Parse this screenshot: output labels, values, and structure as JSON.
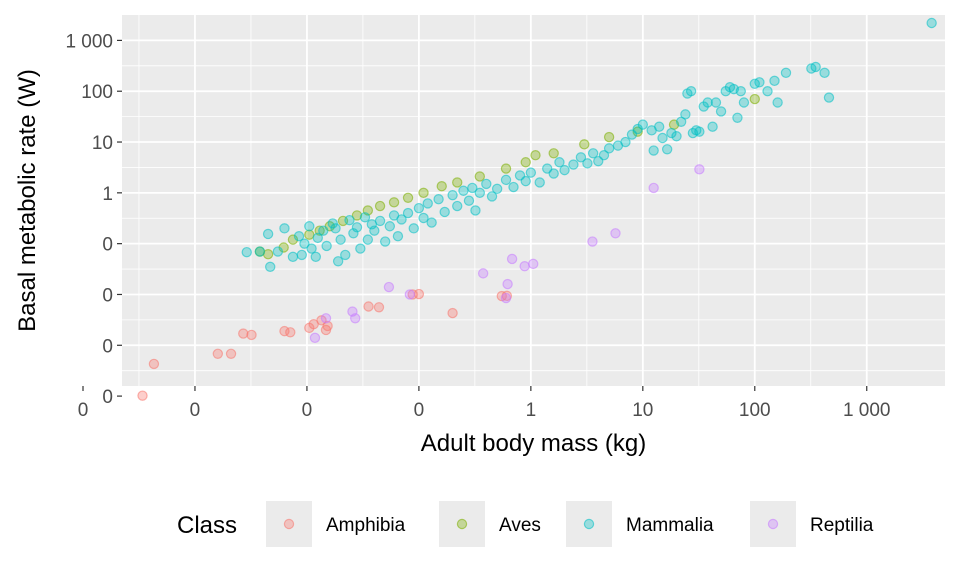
{
  "chart_data": {
    "type": "scatter",
    "xlabel": "Adult body mass (kg)",
    "ylabel": "Basal metabolic rate (W)",
    "x_scale": "log10",
    "y_scale": "log10",
    "xlim": [
      0.000223,
      5000
    ],
    "ylim": [
      0.000158,
      3162
    ],
    "x_ticks": [
      {
        "value": 0.0001,
        "label": "0"
      },
      {
        "value": 0.001,
        "label": "0"
      },
      {
        "value": 0.01,
        "label": "0"
      },
      {
        "value": 0.1,
        "label": "0"
      },
      {
        "value": 1,
        "label": "1"
      },
      {
        "value": 10,
        "label": "10"
      },
      {
        "value": 100,
        "label": "100"
      },
      {
        "value": 1000,
        "label": "1 000"
      }
    ],
    "y_ticks": [
      {
        "value": 0.0001,
        "label": "0"
      },
      {
        "value": 0.001,
        "label": "0"
      },
      {
        "value": 0.01,
        "label": "0"
      },
      {
        "value": 0.1,
        "label": "0"
      },
      {
        "value": 1,
        "label": "1"
      },
      {
        "value": 10,
        "label": "10"
      },
      {
        "value": 100,
        "label": "100"
      },
      {
        "value": 1000,
        "label": "1 000"
      }
    ],
    "grid": true,
    "legend_position": "bottom",
    "legend_title": "Class",
    "marker_alpha": 0.35,
    "series": [
      {
        "name": "Amphibia",
        "color": "#F8766D",
        "points": [
          [
            0.00034,
            0.000102
          ],
          [
            0.00043,
            0.00043
          ],
          [
            0.0016,
            0.00068
          ],
          [
            0.0021,
            0.00068
          ],
          [
            0.0027,
            0.0017
          ],
          [
            0.0032,
            0.0016
          ],
          [
            0.0063,
            0.0019
          ],
          [
            0.0071,
            0.0018
          ],
          [
            0.0105,
            0.0022
          ],
          [
            0.0115,
            0.0026
          ],
          [
            0.0135,
            0.0031
          ],
          [
            0.0148,
            0.002
          ],
          [
            0.0153,
            0.0024
          ],
          [
            0.0355,
            0.0058
          ],
          [
            0.044,
            0.0056
          ],
          [
            0.088,
            0.01
          ],
          [
            0.1,
            0.0102
          ],
          [
            0.2,
            0.0043
          ],
          [
            0.55,
            0.0093
          ],
          [
            0.61,
            0.0094
          ]
        ]
      },
      {
        "name": "Aves",
        "color": "#7CAE00",
        "points": [
          [
            0.0038,
            0.07
          ],
          [
            0.0045,
            0.062
          ],
          [
            0.0062,
            0.084
          ],
          [
            0.0075,
            0.12
          ],
          [
            0.0105,
            0.15
          ],
          [
            0.013,
            0.18
          ],
          [
            0.016,
            0.22
          ],
          [
            0.021,
            0.28
          ],
          [
            0.028,
            0.36
          ],
          [
            0.035,
            0.45
          ],
          [
            0.045,
            0.55
          ],
          [
            0.06,
            0.65
          ],
          [
            0.08,
            0.8
          ],
          [
            0.11,
            1.0
          ],
          [
            0.16,
            1.35
          ],
          [
            0.22,
            1.6
          ],
          [
            0.35,
            2.1
          ],
          [
            0.6,
            3.0
          ],
          [
            0.9,
            4.0
          ],
          [
            1.1,
            5.5
          ],
          [
            1.6,
            6.0
          ],
          [
            3.0,
            9.0
          ],
          [
            5.0,
            12.5
          ],
          [
            9.0,
            16.0
          ],
          [
            19.0,
            22.0
          ],
          [
            100.0,
            70.0
          ]
        ]
      },
      {
        "name": "Mammalia",
        "color": "#00BFC4",
        "points": [
          [
            0.0029,
            0.068
          ],
          [
            0.0038,
            0.07
          ],
          [
            0.0045,
            0.155
          ],
          [
            0.0047,
            0.035
          ],
          [
            0.0055,
            0.07
          ],
          [
            0.0063,
            0.2
          ],
          [
            0.0075,
            0.055
          ],
          [
            0.0085,
            0.14
          ],
          [
            0.009,
            0.06
          ],
          [
            0.0095,
            0.1
          ],
          [
            0.0105,
            0.22
          ],
          [
            0.011,
            0.08
          ],
          [
            0.012,
            0.055
          ],
          [
            0.0125,
            0.13
          ],
          [
            0.014,
            0.18
          ],
          [
            0.015,
            0.09
          ],
          [
            0.017,
            0.25
          ],
          [
            0.018,
            0.2
          ],
          [
            0.019,
            0.045
          ],
          [
            0.02,
            0.12
          ],
          [
            0.022,
            0.06
          ],
          [
            0.024,
            0.29
          ],
          [
            0.026,
            0.16
          ],
          [
            0.028,
            0.21
          ],
          [
            0.03,
            0.08
          ],
          [
            0.033,
            0.33
          ],
          [
            0.035,
            0.12
          ],
          [
            0.038,
            0.24
          ],
          [
            0.04,
            0.18
          ],
          [
            0.045,
            0.28
          ],
          [
            0.05,
            0.11
          ],
          [
            0.055,
            0.22
          ],
          [
            0.06,
            0.36
          ],
          [
            0.065,
            0.14
          ],
          [
            0.07,
            0.3
          ],
          [
            0.08,
            0.4
          ],
          [
            0.09,
            0.2
          ],
          [
            0.1,
            0.5
          ],
          [
            0.11,
            0.32
          ],
          [
            0.12,
            0.62
          ],
          [
            0.13,
            0.26
          ],
          [
            0.15,
            0.75
          ],
          [
            0.17,
            0.42
          ],
          [
            0.2,
            0.9
          ],
          [
            0.22,
            0.55
          ],
          [
            0.25,
            1.1
          ],
          [
            0.28,
            0.7
          ],
          [
            0.3,
            1.25
          ],
          [
            0.32,
            0.45
          ],
          [
            0.35,
            1.0
          ],
          [
            0.4,
            1.5
          ],
          [
            0.45,
            0.85
          ],
          [
            0.5,
            1.2
          ],
          [
            0.6,
            1.8
          ],
          [
            0.7,
            1.3
          ],
          [
            0.8,
            2.2
          ],
          [
            0.9,
            1.7
          ],
          [
            1.0,
            2.5
          ],
          [
            1.2,
            1.6
          ],
          [
            1.4,
            3.0
          ],
          [
            1.6,
            2.4
          ],
          [
            1.8,
            4.0
          ],
          [
            2.0,
            2.8
          ],
          [
            2.4,
            3.6
          ],
          [
            2.8,
            5.0
          ],
          [
            3.2,
            3.8
          ],
          [
            3.6,
            6.0
          ],
          [
            4.0,
            4.2
          ],
          [
            4.5,
            5.5
          ],
          [
            5.0,
            7.5
          ],
          [
            6.0,
            8.5
          ],
          [
            7.0,
            10.0
          ],
          [
            8.0,
            14.0
          ],
          [
            9.0,
            18.0
          ],
          [
            10.0,
            22.0
          ],
          [
            12.0,
            17.0
          ],
          [
            12.5,
            6.8
          ],
          [
            14.0,
            20.0
          ],
          [
            15.0,
            12.0
          ],
          [
            16.5,
            7.2
          ],
          [
            18.0,
            15.0
          ],
          [
            20.0,
            13.0
          ],
          [
            22.0,
            25.0
          ],
          [
            24.0,
            35.0
          ],
          [
            25.0,
            90.0
          ],
          [
            27.0,
            100.0
          ],
          [
            28.0,
            15.0
          ],
          [
            30.0,
            17.0
          ],
          [
            32.0,
            16.0
          ],
          [
            35.0,
            50.0
          ],
          [
            38.0,
            60.0
          ],
          [
            42.0,
            20.0
          ],
          [
            45.0,
            60.0
          ],
          [
            50.0,
            40.0
          ],
          [
            55.0,
            100.0
          ],
          [
            60.0,
            120.0
          ],
          [
            65.0,
            110.0
          ],
          [
            70.0,
            30.0
          ],
          [
            75.0,
            100.0
          ],
          [
            80.0,
            60.0
          ],
          [
            100.0,
            140.0
          ],
          [
            110.0,
            150.0
          ],
          [
            130.0,
            100.0
          ],
          [
            150.0,
            160.0
          ],
          [
            160.0,
            60.0
          ],
          [
            190.0,
            230.0
          ],
          [
            320.0,
            280.0
          ],
          [
            350.0,
            300.0
          ],
          [
            420.0,
            230.0
          ],
          [
            460.0,
            75.0
          ],
          [
            3800.0,
            2200.0
          ]
        ]
      },
      {
        "name": "Reptilia",
        "color": "#C77CFF",
        "points": [
          [
            0.0118,
            0.0014
          ],
          [
            0.0148,
            0.0034
          ],
          [
            0.0255,
            0.0046
          ],
          [
            0.027,
            0.0034
          ],
          [
            0.054,
            0.014
          ],
          [
            0.083,
            0.01
          ],
          [
            0.375,
            0.026
          ],
          [
            0.6,
            0.0085
          ],
          [
            0.62,
            0.016
          ],
          [
            0.68,
            0.05
          ],
          [
            0.88,
            0.036
          ],
          [
            1.05,
            0.04
          ],
          [
            3.55,
            0.11
          ],
          [
            5.7,
            0.16
          ],
          [
            12.5,
            1.25
          ],
          [
            32.0,
            2.9
          ]
        ]
      }
    ]
  }
}
